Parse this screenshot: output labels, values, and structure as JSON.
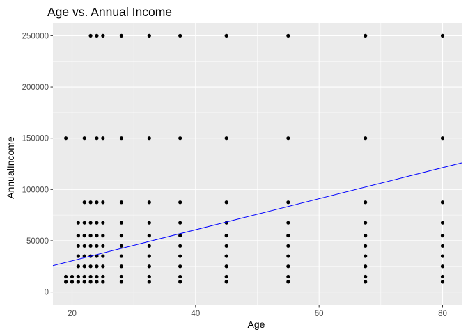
{
  "chart_data": {
    "type": "scatter",
    "title": "Age vs. Annual Income",
    "xlabel": "Age",
    "ylabel": "AnnualIncome",
    "xlim": [
      16.9,
      83.1
    ],
    "ylim": [
      -12500,
      262500
    ],
    "xticks": [
      20,
      40,
      60,
      80
    ],
    "yticks": [
      0,
      50000,
      100000,
      150000,
      200000,
      250000
    ],
    "grid": true,
    "legend": "none",
    "colors": {
      "panel": "#ebebeb",
      "grid": "#ffffff",
      "points": "#000000",
      "trend_line": "#0000ff"
    },
    "series": [
      {
        "points": [
          [
            19,
            150000
          ],
          [
            22,
            150000
          ],
          [
            23,
            250000
          ],
          [
            24,
            250000
          ],
          [
            25,
            250000
          ],
          [
            24,
            150000
          ],
          [
            25,
            150000
          ],
          [
            28,
            250000
          ],
          [
            28,
            150000
          ],
          [
            32.5,
            250000
          ],
          [
            32.5,
            150000
          ],
          [
            37.5,
            250000
          ],
          [
            37.5,
            150000
          ],
          [
            45,
            250000
          ],
          [
            45,
            150000
          ],
          [
            55,
            250000
          ],
          [
            55,
            150000
          ],
          [
            67.5,
            250000
          ],
          [
            67.5,
            150000
          ],
          [
            80,
            250000
          ],
          [
            80,
            150000
          ],
          [
            22,
            87500
          ],
          [
            23,
            87500
          ],
          [
            24,
            87500
          ],
          [
            25,
            87500
          ],
          [
            28,
            87500
          ],
          [
            32.5,
            87500
          ],
          [
            37.5,
            87500
          ],
          [
            45,
            87500
          ],
          [
            55,
            87500
          ],
          [
            67.5,
            87500
          ],
          [
            80,
            87500
          ],
          [
            21,
            67500
          ],
          [
            22,
            67500
          ],
          [
            23,
            67500
          ],
          [
            24,
            67500
          ],
          [
            25,
            67500
          ],
          [
            28,
            67500
          ],
          [
            32.5,
            67500
          ],
          [
            37.5,
            67500
          ],
          [
            45,
            67500
          ],
          [
            55,
            67500
          ],
          [
            67.5,
            67500
          ],
          [
            80,
            67500
          ],
          [
            21,
            55000
          ],
          [
            22,
            55000
          ],
          [
            23,
            55000
          ],
          [
            24,
            55000
          ],
          [
            25,
            55000
          ],
          [
            28,
            55000
          ],
          [
            32.5,
            55000
          ],
          [
            37.5,
            55000
          ],
          [
            45,
            55000
          ],
          [
            55,
            55000
          ],
          [
            67.5,
            55000
          ],
          [
            80,
            55000
          ],
          [
            21,
            45000
          ],
          [
            22,
            45000
          ],
          [
            23,
            45000
          ],
          [
            24,
            45000
          ],
          [
            25,
            45000
          ],
          [
            28,
            45000
          ],
          [
            32.5,
            45000
          ],
          [
            37.5,
            45000
          ],
          [
            45,
            45000
          ],
          [
            55,
            45000
          ],
          [
            67.5,
            45000
          ],
          [
            80,
            45000
          ],
          [
            21,
            35000
          ],
          [
            22,
            35000
          ],
          [
            23,
            35000
          ],
          [
            24,
            35000
          ],
          [
            25,
            35000
          ],
          [
            28,
            35000
          ],
          [
            32.5,
            35000
          ],
          [
            37.5,
            35000
          ],
          [
            45,
            35000
          ],
          [
            55,
            35000
          ],
          [
            67.5,
            35000
          ],
          [
            80,
            35000
          ],
          [
            21,
            25000
          ],
          [
            22,
            25000
          ],
          [
            23,
            25000
          ],
          [
            24,
            25000
          ],
          [
            25,
            25000
          ],
          [
            28,
            25000
          ],
          [
            32.5,
            25000
          ],
          [
            37.5,
            25000
          ],
          [
            45,
            25000
          ],
          [
            55,
            25000
          ],
          [
            67.5,
            25000
          ],
          [
            80,
            25000
          ],
          [
            19,
            15000
          ],
          [
            20,
            15000
          ],
          [
            21,
            15000
          ],
          [
            22,
            15000
          ],
          [
            23,
            15000
          ],
          [
            24,
            15000
          ],
          [
            25,
            15000
          ],
          [
            28,
            15000
          ],
          [
            32.5,
            15000
          ],
          [
            37.5,
            15000
          ],
          [
            45,
            15000
          ],
          [
            55,
            15000
          ],
          [
            67.5,
            15000
          ],
          [
            80,
            15000
          ],
          [
            19,
            10000
          ],
          [
            20,
            10000
          ],
          [
            21,
            10000
          ],
          [
            22,
            10000
          ],
          [
            23,
            10000
          ],
          [
            24,
            10000
          ],
          [
            25,
            10000
          ],
          [
            28,
            10000
          ],
          [
            32.5,
            10000
          ],
          [
            37.5,
            10000
          ],
          [
            45,
            10000
          ],
          [
            55,
            10000
          ],
          [
            67.5,
            10000
          ],
          [
            80,
            10000
          ]
        ]
      }
    ],
    "trend_line": {
      "x": [
        16.9,
        83.1
      ],
      "y": [
        25700,
        126000
      ]
    }
  }
}
